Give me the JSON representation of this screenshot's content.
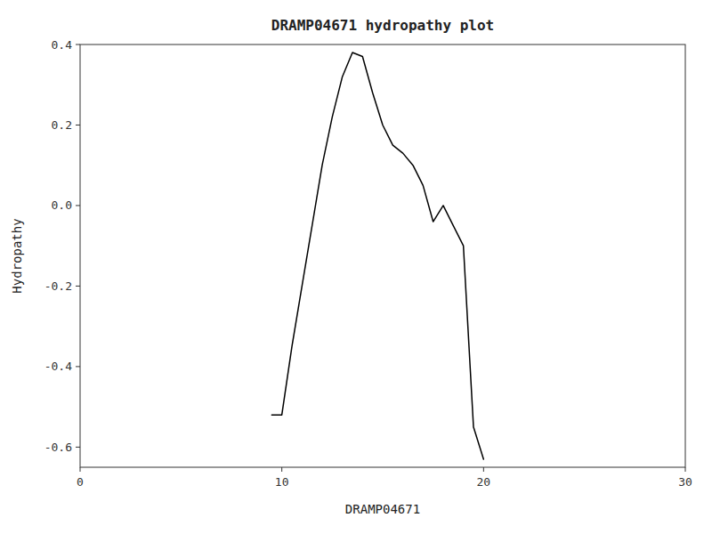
{
  "chart_data": {
    "type": "line",
    "title": "DRAMP04671 hydropathy plot",
    "xlabel": "DRAMP04671",
    "ylabel": "Hydropathy",
    "x": [
      9.5,
      10.0,
      10.5,
      11.0,
      11.5,
      12.0,
      12.5,
      13.0,
      13.5,
      14.0,
      14.5,
      15.0,
      15.5,
      16.0,
      16.5,
      17.0,
      17.5,
      18.0,
      18.5,
      19.0,
      19.5,
      20.0
    ],
    "values": [
      -0.52,
      -0.52,
      -0.35,
      -0.2,
      -0.05,
      0.1,
      0.22,
      0.32,
      0.38,
      0.37,
      0.28,
      0.2,
      0.15,
      0.13,
      0.1,
      0.05,
      -0.04,
      0.0,
      -0.05,
      -0.1,
      -0.55,
      -0.63
    ],
    "color": "#000000",
    "xlim": [
      0,
      30
    ],
    "ylim": [
      -0.65,
      0.4
    ],
    "xticks": [
      0,
      10,
      20,
      30
    ],
    "yticks": [
      -0.6,
      -0.4,
      -0.2,
      {
        "value": 0,
        "label": "0.0"
      },
      0.2,
      0.4
    ],
    "grid": false
  }
}
